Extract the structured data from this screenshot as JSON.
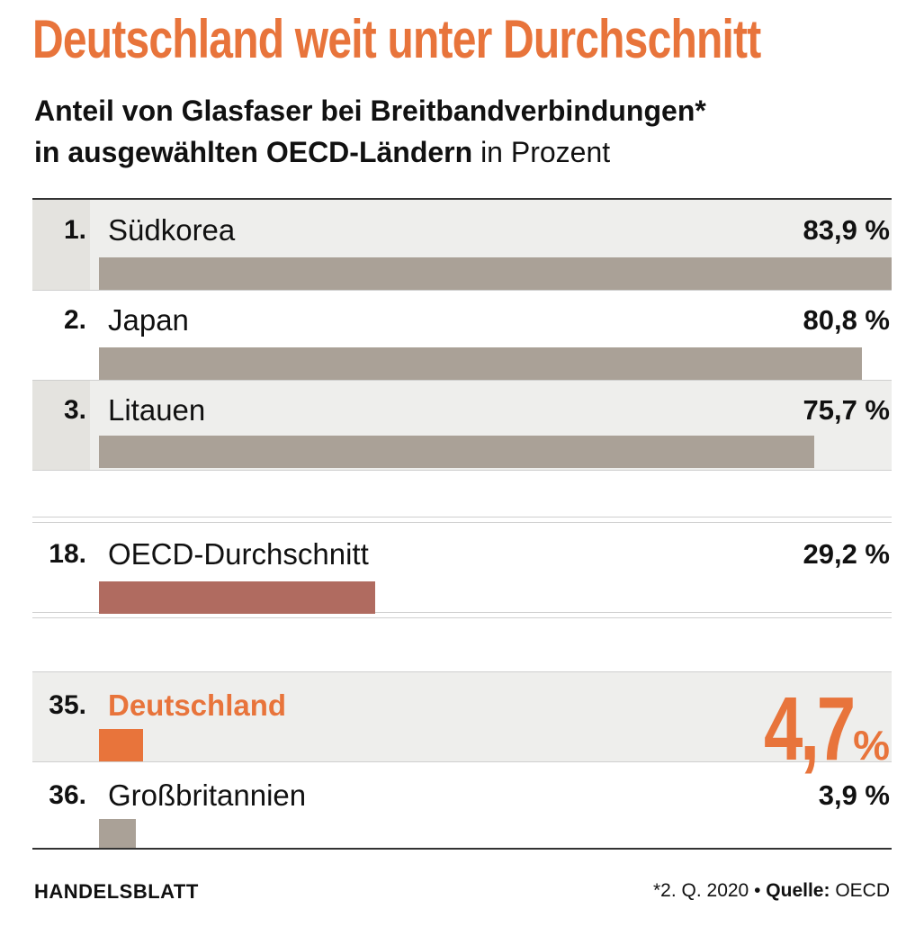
{
  "header": {
    "title": "Deutschland weit unter Durchschnitt",
    "subtitle_bold_1": "Anteil von Glasfaser bei Breitbandverbindungen*",
    "subtitle_bold_2": "in ausgewählten OECD-Ländern",
    "subtitle_unit": "in Prozent"
  },
  "colors": {
    "accent": "#e8743b",
    "bar_default": "#aaa197",
    "bar_oecd": "#b06b60",
    "bar_highlight": "#e8743b",
    "row_shade": "#eeeeec"
  },
  "chart_data": {
    "type": "bar",
    "orientation": "horizontal",
    "title": "Deutschland weit unter Durchschnitt",
    "subtitle": "Anteil von Glasfaser bei Breitbandverbindungen* in ausgewählten OECD-Ländern in Prozent",
    "unit": "%",
    "xlim": [
      0,
      83.9
    ],
    "grid": false,
    "legend": "none",
    "rows": [
      {
        "rank": "1.",
        "label": "Südkorea",
        "value": 83.9,
        "value_label": "83,9 %",
        "group": "top"
      },
      {
        "rank": "2.",
        "label": "Japan",
        "value": 80.8,
        "value_label": "80,8 %",
        "group": "top"
      },
      {
        "rank": "3.",
        "label": "Litauen",
        "value": 75.7,
        "value_label": "75,7 %",
        "group": "top"
      },
      {
        "rank": "18.",
        "label": "OECD-Durchschnitt",
        "value": 29.2,
        "value_label": "29,2 %",
        "group": "average"
      },
      {
        "rank": "35.",
        "label": "Deutschland",
        "value": 4.7,
        "value_label": "4,7",
        "value_unit": "%",
        "group": "highlight"
      },
      {
        "rank": "36.",
        "label": "Großbritannien",
        "value": 3.9,
        "value_label": "3,9 %",
        "group": "bottom"
      }
    ]
  },
  "footer": {
    "brand": "HANDELSBLATT",
    "note": "*2. Q. 2020",
    "bullet": "•",
    "source_label": "Quelle:",
    "source": "OECD"
  }
}
